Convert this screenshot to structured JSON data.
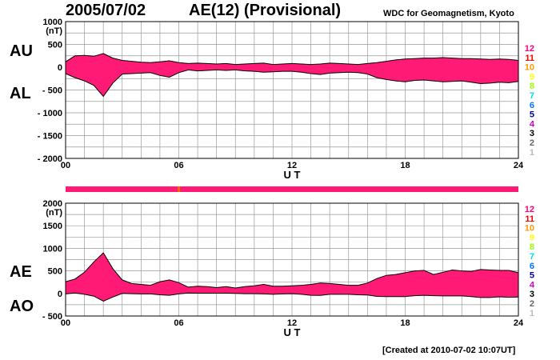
{
  "header": {
    "date": "2005/07/02",
    "title": "AE(12) (Provisional)",
    "source": "WDC for Geomagnetism, Kyoto"
  },
  "footer": {
    "created": "[Created at 2010-07-02 10:07UT]"
  },
  "colors": {
    "fill": "#ff1a75",
    "outline": "#000000",
    "grid": "#9a9a9a",
    "bar": "#ff1a75",
    "bar_marker": "#ff6600"
  },
  "status_bar": {
    "marker_hour": 6.0
  },
  "station_scale": [
    {
      "n": "12",
      "color": "#ff0080"
    },
    {
      "n": "11",
      "color": "#ff0000"
    },
    {
      "n": "10",
      "color": "#ff9900"
    },
    {
      "n": "9",
      "color": "#ffff00"
    },
    {
      "n": "8",
      "color": "#99ff00"
    },
    {
      "n": "7",
      "color": "#00e0e0"
    },
    {
      "n": "6",
      "color": "#0077ff"
    },
    {
      "n": "5",
      "color": "#0000aa"
    },
    {
      "n": "4",
      "color": "#cc00cc"
    },
    {
      "n": "3",
      "color": "#000000"
    },
    {
      "n": "2",
      "color": "#666666"
    },
    {
      "n": "1",
      "color": "#bbbbbb"
    }
  ],
  "chart_data": [
    {
      "type": "area",
      "upper_label": "AU",
      "lower_label": "AL",
      "unit": "(nT)",
      "xlabel": "U T",
      "xlim": [
        0,
        24
      ],
      "xticks": [
        "00",
        "06",
        "12",
        "18",
        "24"
      ],
      "ylim": [
        -2000,
        1000
      ],
      "yticks": [
        "1000",
        "500",
        "0",
        "- 500",
        "- 1000",
        "- 1500",
        "- 2000"
      ],
      "grid": true,
      "hours": [
        0,
        0.5,
        1,
        1.5,
        2,
        2.5,
        3,
        3.5,
        4,
        4.5,
        5,
        5.5,
        6,
        6.5,
        7,
        7.5,
        8,
        8.5,
        9,
        9.5,
        10,
        10.5,
        11,
        11.5,
        12,
        12.5,
        13,
        13.5,
        14,
        14.5,
        15,
        15.5,
        16,
        16.5,
        17,
        17.5,
        18,
        18.5,
        19,
        19.5,
        20,
        20.5,
        21,
        21.5,
        22,
        22.5,
        23,
        23.5,
        24
      ],
      "series": [
        {
          "name": "AU",
          "values": [
            120,
            250,
            260,
            240,
            300,
            200,
            150,
            130,
            110,
            100,
            120,
            140,
            100,
            80,
            90,
            80,
            70,
            80,
            60,
            70,
            80,
            90,
            60,
            70,
            80,
            70,
            60,
            70,
            90,
            80,
            70,
            60,
            80,
            100,
            130,
            160,
            180,
            190,
            200,
            200,
            210,
            200,
            190,
            190,
            180,
            170,
            180,
            170,
            150
          ]
        },
        {
          "name": "AL",
          "values": [
            -140,
            -230,
            -300,
            -400,
            -640,
            -350,
            -150,
            -140,
            -130,
            -120,
            -180,
            -220,
            -120,
            -60,
            -80,
            -70,
            -60,
            -70,
            -60,
            -80,
            -90,
            -110,
            -100,
            -90,
            -90,
            -110,
            -140,
            -160,
            -130,
            -120,
            -110,
            -120,
            -150,
            -230,
            -270,
            -300,
            -320,
            -290,
            -280,
            -300,
            -320,
            -310,
            -300,
            -330,
            -360,
            -350,
            -330,
            -340,
            -310
          ]
        }
      ]
    },
    {
      "type": "area",
      "upper_label": "AE",
      "lower_label": "AO",
      "unit": "(nT)",
      "xlabel": "U T",
      "xlim": [
        0,
        24
      ],
      "xticks": [
        "00",
        "06",
        "12",
        "18",
        "24"
      ],
      "ylim": [
        -500,
        2000
      ],
      "yticks": [
        "2000",
        "1500",
        "1000",
        "500",
        "0",
        "- 500"
      ],
      "grid": true,
      "hours": [
        0,
        0.5,
        1,
        1.5,
        2,
        2.5,
        3,
        3.5,
        4,
        4.5,
        5,
        5.5,
        6,
        6.5,
        7,
        7.5,
        8,
        8.5,
        9,
        9.5,
        10,
        10.5,
        11,
        11.5,
        12,
        12.5,
        13,
        13.5,
        14,
        14.5,
        15,
        15.5,
        16,
        16.5,
        17,
        17.5,
        18,
        18.5,
        19,
        19.5,
        20,
        20.5,
        21,
        21.5,
        22,
        22.5,
        23,
        23.5,
        24
      ],
      "series": [
        {
          "name": "AE",
          "values": [
            260,
            320,
            470,
            700,
            900,
            550,
            300,
            220,
            200,
            180,
            260,
            300,
            240,
            140,
            160,
            150,
            130,
            150,
            120,
            150,
            170,
            200,
            160,
            160,
            170,
            180,
            200,
            230,
            220,
            200,
            180,
            180,
            230,
            330,
            400,
            420,
            460,
            500,
            510,
            420,
            470,
            520,
            500,
            490,
            530,
            520,
            510,
            510,
            460
          ]
        },
        {
          "name": "AO",
          "values": [
            -10,
            10,
            -20,
            -60,
            -170,
            -80,
            0,
            -5,
            -10,
            -10,
            -30,
            -40,
            -10,
            10,
            5,
            5,
            5,
            5,
            0,
            -5,
            -5,
            -10,
            -20,
            -10,
            -5,
            -20,
            -40,
            -45,
            -20,
            -20,
            -20,
            -30,
            -35,
            -65,
            -70,
            -70,
            -70,
            -50,
            -40,
            -50,
            -55,
            -55,
            -55,
            -70,
            -90,
            -90,
            -75,
            -85,
            -80
          ]
        }
      ]
    }
  ]
}
